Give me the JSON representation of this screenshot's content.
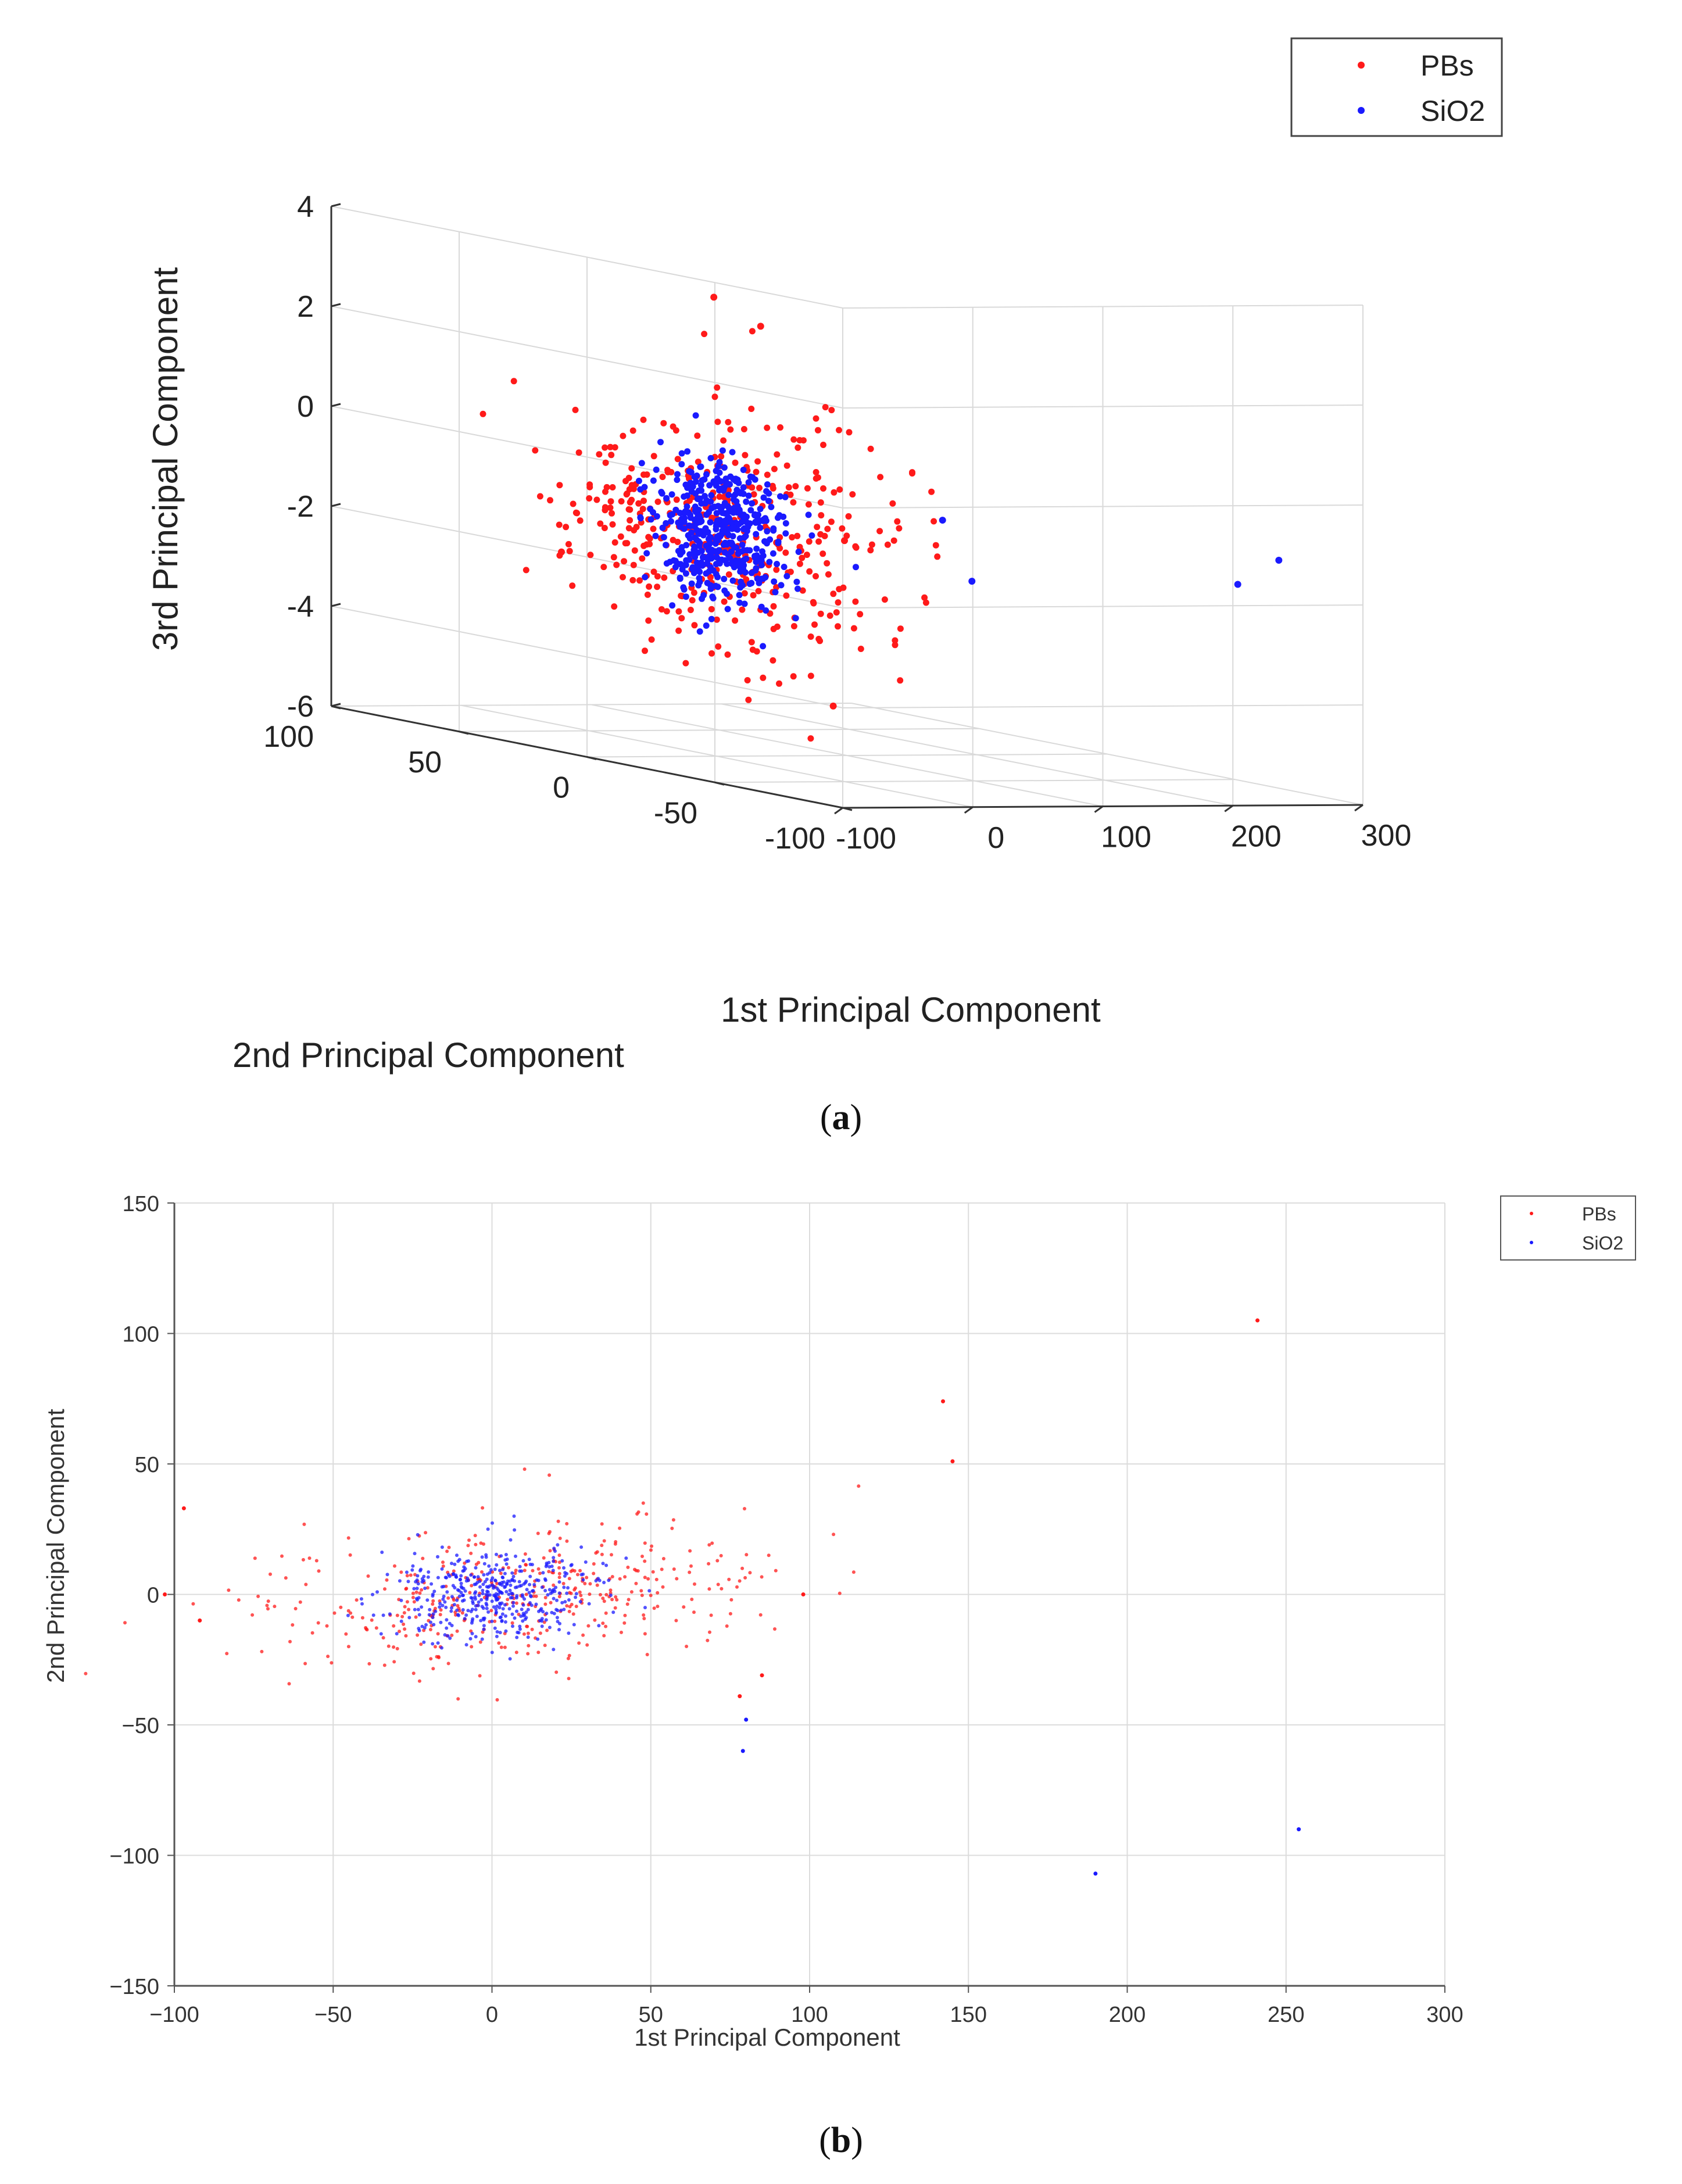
{
  "colors": {
    "pbs": "#ff1a1a",
    "sio2": "#1a1aff",
    "grid": "#d9d9d9",
    "axis": "#333333"
  },
  "captions": {
    "a_label": "a",
    "b_label": "b"
  },
  "chart_data": [
    {
      "type": "scatter",
      "title": "",
      "xlabel": "1st Principal Component",
      "ylabel": "2nd Principal Component",
      "zlabel": "3rd Principal Component",
      "xlim": [
        -100,
        300
      ],
      "ylim": [
        -100,
        100
      ],
      "zlim": [
        -6,
        4
      ],
      "xticks": [
        "-100",
        "0",
        "100",
        "200",
        "300"
      ],
      "yticks": [
        "-100",
        "-50",
        "0",
        "50",
        "100"
      ],
      "zticks": [
        "-6",
        "-4",
        "-2",
        "0",
        "2",
        "4"
      ],
      "legend": {
        "placement": "top-right",
        "entries": [
          "PBs",
          "SiO2"
        ]
      },
      "series": [
        {
          "name": "PBs",
          "cluster_center": [
            5,
            0,
            -1.5
          ],
          "spread": [
            40,
            25,
            1.2
          ],
          "n_points": 420,
          "outliers": [
            [
              145,
              75,
              2.4
            ],
            [
              98,
              0,
              -1.7
            ],
            [
              240,
              105,
              1.5
            ],
            [
              -100,
              10,
              -2
            ],
            [
              50,
              -20,
              -4.8
            ]
          ]
        },
        {
          "name": "SiO2",
          "cluster_center": [
            0,
            0,
            -1.5
          ],
          "spread": [
            15,
            10,
            0.7
          ],
          "n_points": 450,
          "outliers": [
            [
              190,
              -107,
              -1.5
            ],
            [
              255,
              -90,
              -1.2
            ],
            [
              79,
              -48,
              -0.8
            ],
            [
              78,
              -60,
              -1.9
            ]
          ]
        }
      ]
    },
    {
      "type": "scatter",
      "title": "",
      "xlabel": "1st Principal Component",
      "ylabel": "2nd Principal Component",
      "xlim": [
        -100,
        300
      ],
      "ylim": [
        -150,
        150
      ],
      "xticks": [
        "-100",
        "-50",
        "0",
        "50",
        "100",
        "150",
        "200",
        "250",
        "300"
      ],
      "yticks": [
        "-150",
        "-100",
        "-50",
        "0",
        "50",
        "100",
        "150"
      ],
      "grid": true,
      "legend": {
        "placement": "top-right",
        "entries": [
          "PBs",
          "SiO2"
        ]
      },
      "series": [
        {
          "name": "PBs",
          "cluster_center": [
            5,
            0
          ],
          "spread": [
            38,
            14
          ],
          "n_points": 420,
          "outliers": [
            [
              241,
              105
            ],
            [
              142,
              74
            ],
            [
              145,
              51
            ],
            [
              98,
              0
            ],
            [
              85,
              -31
            ],
            [
              78,
              -39
            ],
            [
              -97,
              33
            ],
            [
              -92,
              -10
            ],
            [
              -103,
              0
            ]
          ]
        },
        {
          "name": "SiO2",
          "cluster_center": [
            0,
            0
          ],
          "spread": [
            16,
            9
          ],
          "n_points": 450,
          "outliers": [
            [
              190,
              -107
            ],
            [
              254,
              -90
            ],
            [
              80,
              -48
            ],
            [
              79,
              -60
            ]
          ]
        }
      ]
    }
  ]
}
